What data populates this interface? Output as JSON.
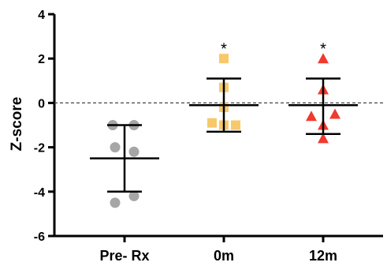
{
  "chart_data": {
    "type": "scatter",
    "title": "",
    "xlabel": "",
    "ylabel": "Z-score",
    "ylim": [
      -6,
      4
    ],
    "yticks": [
      4,
      2,
      0,
      -2,
      -4,
      -6
    ],
    "grid": false,
    "reference_line": {
      "y": 0,
      "style": "dashed"
    },
    "categories": [
      "Pre- Rx",
      "0m",
      "12m"
    ],
    "series": [
      {
        "category": "Pre- Rx",
        "marker": "circle",
        "color": "#a6a6a6",
        "points": [
          {
            "x_offset": -0.25,
            "y": -1.0
          },
          {
            "x_offset": 0.2,
            "y": -1.0
          },
          {
            "x_offset": -0.2,
            "y": -2.0
          },
          {
            "x_offset": 0.2,
            "y": -2.2
          },
          {
            "x_offset": 0.2,
            "y": -4.2
          },
          {
            "x_offset": -0.2,
            "y": -4.5
          }
        ],
        "mean": -2.5,
        "sd_upper": -1.0,
        "sd_lower": -4.0,
        "significance": ""
      },
      {
        "category": "0m",
        "marker": "square",
        "color": "#f7c96b",
        "points": [
          {
            "x_offset": 0.0,
            "y": 2.0
          },
          {
            "x_offset": 0.0,
            "y": 0.7
          },
          {
            "x_offset": 0.0,
            "y": -0.2
          },
          {
            "x_offset": -0.25,
            "y": -0.9
          },
          {
            "x_offset": 0.25,
            "y": -1.0
          },
          {
            "x_offset": 0.0,
            "y": -1.0
          }
        ],
        "mean": -0.1,
        "sd_upper": 1.1,
        "sd_lower": -1.3,
        "significance": "*"
      },
      {
        "category": "12m",
        "marker": "triangle",
        "color": "#f03a2e",
        "points": [
          {
            "x_offset": 0.0,
            "y": 2.0
          },
          {
            "x_offset": 0.0,
            "y": 0.6
          },
          {
            "x_offset": -0.25,
            "y": -0.6
          },
          {
            "x_offset": 0.25,
            "y": -0.5
          },
          {
            "x_offset": 0.0,
            "y": -1.0
          },
          {
            "x_offset": 0.0,
            "y": -1.6
          }
        ],
        "mean": -0.1,
        "sd_upper": 1.1,
        "sd_lower": -1.4,
        "significance": "*"
      }
    ]
  }
}
